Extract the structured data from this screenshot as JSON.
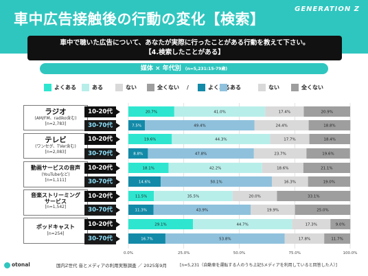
{
  "header": {
    "title": "車中広告接触後の行動の変化【検索】",
    "brand": "GENERATION Z",
    "question_line1": "車中で聴いた広告について、あなたが実際に行ったことがある行動を教えて下さい。",
    "question_line2": "【4.検索したことがある】",
    "segment_label": "媒体 × 年代別",
    "segment_n": "(n=5,231:15-79歳)"
  },
  "legend": {
    "items": [
      {
        "label": "よくある",
        "color": "#2ee6cf"
      },
      {
        "label": "ある",
        "color": "#b8eeea"
      },
      {
        "label": "ない",
        "color": "#d9d9d9"
      },
      {
        "label": "全くない",
        "color": "#9e9e9e"
      },
      {
        "label": "よくある",
        "color": "#138aa8"
      },
      {
        "label": "ある",
        "color": "#8fc1dc"
      },
      {
        "label": "ない",
        "color": "#d9d9d9"
      },
      {
        "label": "全くない",
        "color": "#9e9e9e"
      }
    ],
    "separator": "/"
  },
  "groups": [
    {
      "name": "ラジオ",
      "sub": "(AM/FM、radiko含む)",
      "n": "[n=2,783]"
    },
    {
      "name": "テレビ",
      "sub": "(ワンセグ、TVer含む)",
      "n": "[n=2,083]"
    },
    {
      "name": "動画サービスの音声",
      "sub": "(YouTubeなど)",
      "n": "[n=1,111]"
    },
    {
      "name": "音楽ストリーミング\nサービス",
      "sub": "",
      "n": "[n=1,542]"
    },
    {
      "name": "ポッドキャスト",
      "sub": "",
      "n": "[n=254]"
    }
  ],
  "chart_data": {
    "type": "bar",
    "orientation": "horizontal-stacked-100",
    "xlim": [
      0,
      100
    ],
    "xticks": [
      "0.0%",
      "25.0%",
      "50.0%",
      "75.0%",
      "100.0%"
    ],
    "segments": [
      "よくある",
      "ある",
      "ない",
      "全くない"
    ],
    "rows": [
      {
        "group": "ラジオ",
        "age": "10-20代",
        "values": [
          20.7,
          41.0,
          17.4,
          20.9
        ],
        "labels": [
          "20.7%",
          "41.0%",
          "17.4%",
          "20.9%"
        ]
      },
      {
        "group": "ラジオ",
        "age": "30-70代",
        "values": [
          7.5,
          49.4,
          24.4,
          18.8
        ],
        "labels": [
          "7.5%",
          "49.4%",
          "24.4%",
          "18.8%"
        ]
      },
      {
        "group": "テレビ",
        "age": "10-20代",
        "values": [
          19.6,
          44.3,
          17.7,
          18.4
        ],
        "labels": [
          "19.6%",
          "44.3%",
          "17.7%",
          "18.4%"
        ]
      },
      {
        "group": "テレビ",
        "age": "30-70代",
        "values": [
          8.8,
          47.8,
          23.7,
          19.6
        ],
        "labels": [
          "8.8%",
          "47.8%",
          "23.7%",
          "19.6%"
        ]
      },
      {
        "group": "動画サービスの音声",
        "age": "10-20代",
        "values": [
          18.1,
          42.2,
          18.6,
          21.1
        ],
        "labels": [
          "18.1%",
          "42.2%",
          "18.6%",
          "21.1%"
        ]
      },
      {
        "group": "動画サービスの音声",
        "age": "30-70代",
        "values": [
          14.6,
          50.1,
          16.3,
          19.0
        ],
        "labels": [
          "14.6%",
          "50.1%",
          "16.3%",
          "19.0%"
        ]
      },
      {
        "group": "音楽ストリーミングサービス",
        "age": "10-20代",
        "values": [
          11.5,
          35.5,
          20.0,
          33.1
        ],
        "labels": [
          "11.5%",
          "35.5%",
          "20.0%",
          "33.1%"
        ]
      },
      {
        "group": "音楽ストリーミングサービス",
        "age": "30-70代",
        "values": [
          11.3,
          43.9,
          19.9,
          25.0
        ],
        "labels": [
          "11.3%",
          "43.9%",
          "19.9%",
          "25.0%"
        ]
      },
      {
        "group": "ポッドキャスト",
        "age": "10-20代",
        "values": [
          29.1,
          44.7,
          17.3,
          9.0
        ],
        "labels": [
          "29.1%",
          "44.7%",
          "17.3%",
          "9.0%"
        ]
      },
      {
        "group": "ポッドキャスト",
        "age": "30-70代",
        "values": [
          16.7,
          53.8,
          17.8,
          11.7
        ],
        "labels": [
          "16.7%",
          "53.8%",
          "17.8%",
          "11.7%"
        ]
      }
    ],
    "colors_10_20": [
      "#2ee6cf",
      "#b8eeea",
      "#d9d9d9",
      "#9e9e9e"
    ],
    "colors_30_70": [
      "#138aa8",
      "#8fc1dc",
      "#d9d9d9",
      "#9e9e9e"
    ],
    "grid": true
  },
  "footer": {
    "logo": "otonal",
    "source": "国内Z世代 音とメディアの利用実態調査 ／ 2025年9月",
    "note": "[n=5,231（自動車を運転する人のうち上記5メディアを利用していると回答した人）]"
  }
}
